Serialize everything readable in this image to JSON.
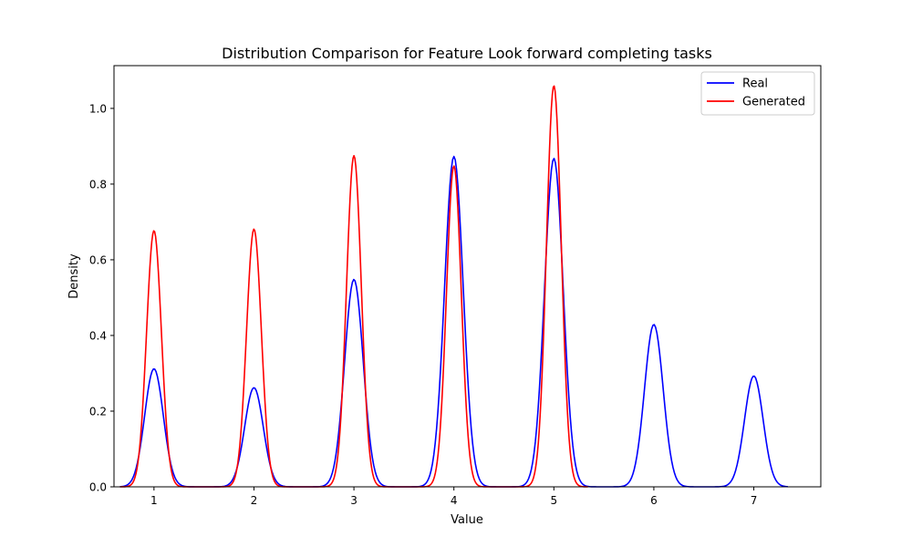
{
  "chart_data": {
    "type": "line",
    "title": "Distribution Comparison for Feature Look forward completing tasks",
    "xlabel": "Value",
    "ylabel": "Density",
    "xlim": [
      0.6,
      7.67
    ],
    "ylim": [
      0,
      1.113
    ],
    "xticks": [
      1,
      2,
      3,
      4,
      5,
      6,
      7
    ],
    "yticks": [
      0.0,
      0.2,
      0.4,
      0.6,
      0.8,
      1.0
    ],
    "xtick_labels": [
      "1",
      "2",
      "3",
      "4",
      "5",
      "6",
      "7"
    ],
    "ytick_labels": [
      "0.0",
      "0.2",
      "0.4",
      "0.6",
      "0.8",
      "1.0"
    ],
    "grid": false,
    "legend_position": "top-right",
    "series": [
      {
        "name": "Real",
        "color": "#0000ff",
        "x_range": [
          0.66,
          7.34
        ],
        "kde_sigma": 0.093,
        "peaks": [
          {
            "x": 1,
            "y": 0.312
          },
          {
            "x": 2,
            "y": 0.262
          },
          {
            "x": 3,
            "y": 0.548
          },
          {
            "x": 4,
            "y": 0.873
          },
          {
            "x": 5,
            "y": 0.868
          },
          {
            "x": 6,
            "y": 0.429
          },
          {
            "x": 7,
            "y": 0.293
          }
        ]
      },
      {
        "name": "Generated",
        "color": "#ff0000",
        "x_range": [
          0.66,
          5.34
        ],
        "kde_sigma": 0.074,
        "peaks": [
          {
            "x": 1,
            "y": 0.677
          },
          {
            "x": 2,
            "y": 0.681
          },
          {
            "x": 3,
            "y": 0.875
          },
          {
            "x": 4,
            "y": 0.848
          },
          {
            "x": 5,
            "y": 1.06
          }
        ]
      }
    ]
  }
}
